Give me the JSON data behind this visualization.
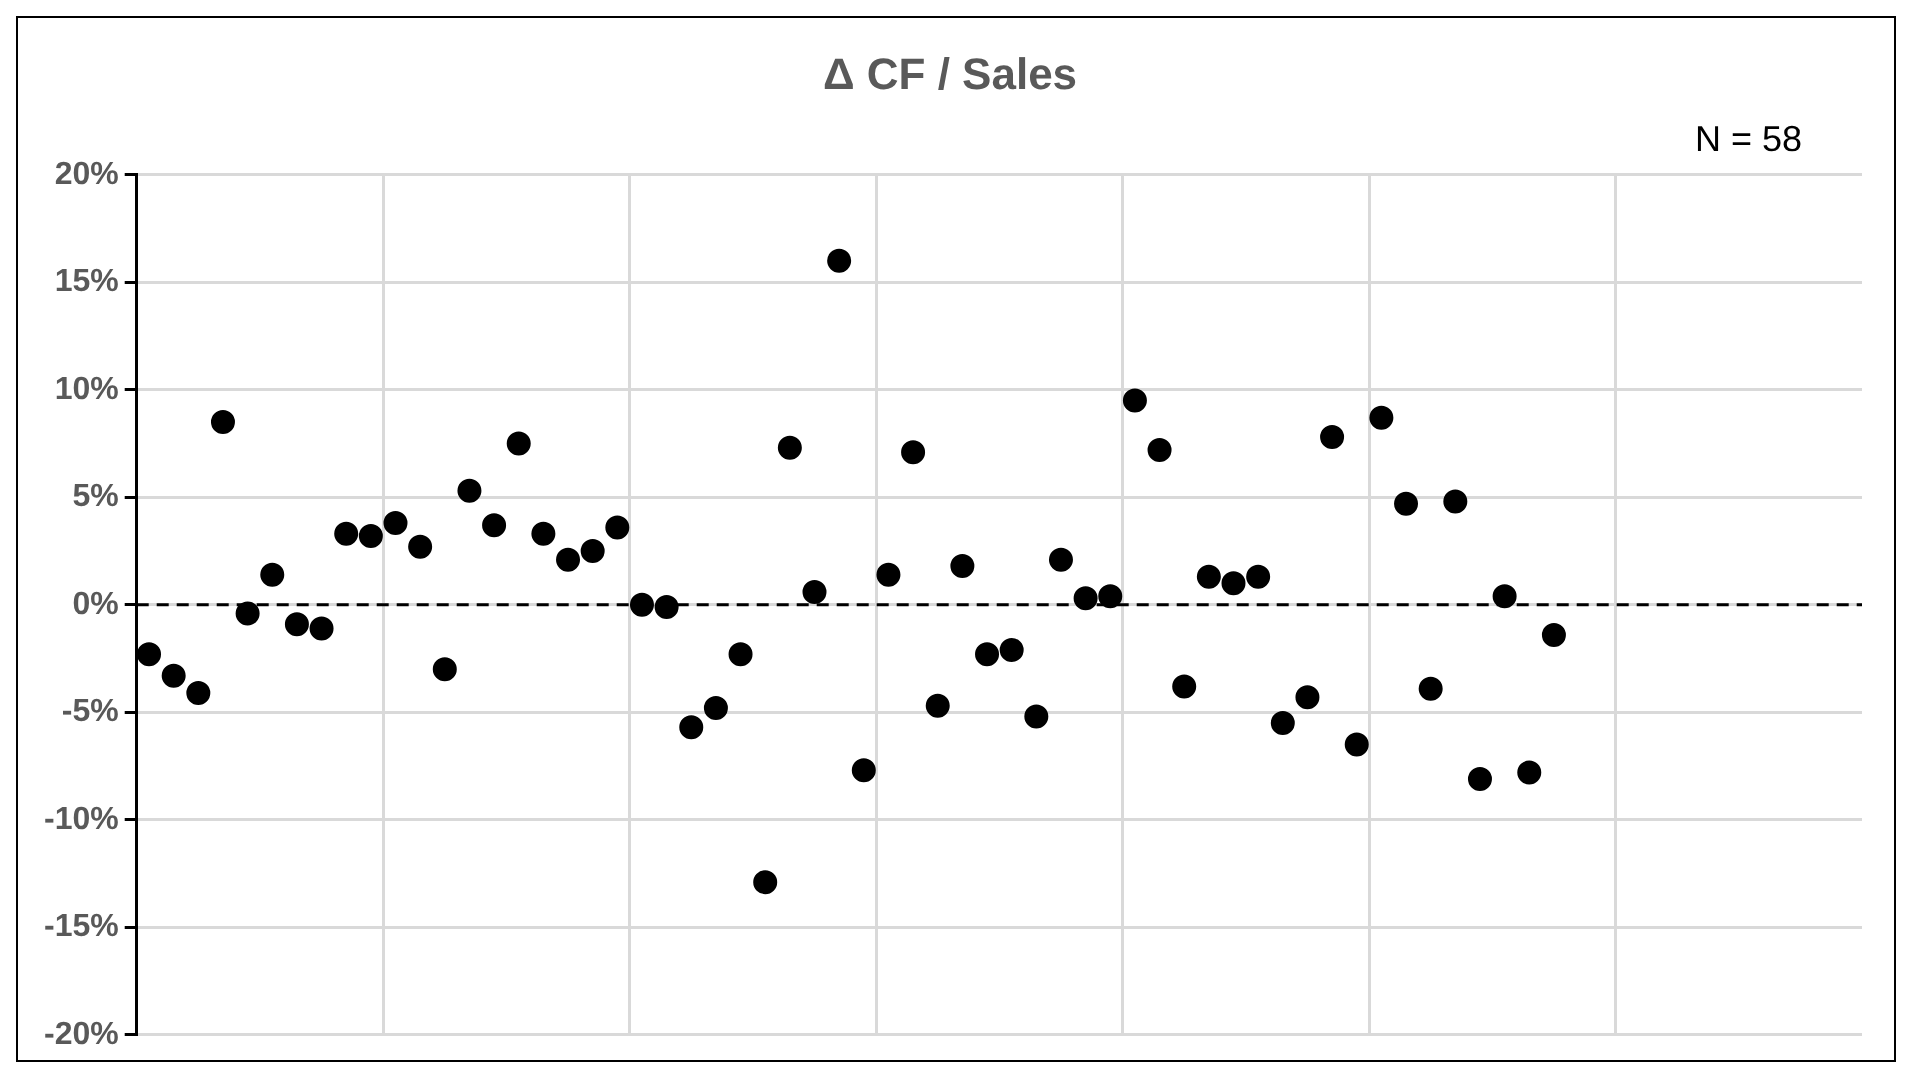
{
  "chart_data": {
    "type": "scatter",
    "title": "Δ CF / Sales",
    "annotations": [
      "N = 58"
    ],
    "categories": [
      null,
      null,
      null,
      null,
      null,
      null,
      null,
      null,
      null,
      null,
      null,
      null,
      null,
      null,
      null,
      null,
      null,
      null,
      null,
      null,
      null,
      null,
      null,
      null,
      null,
      null,
      null,
      null,
      null,
      null,
      null,
      null,
      null,
      null,
      null,
      null,
      null,
      null,
      null,
      null,
      null,
      null,
      null,
      null,
      null,
      null,
      null,
      null,
      null,
      null,
      null,
      null,
      null,
      null,
      null,
      null,
      null,
      null,
      null,
      null,
      null,
      null,
      null,
      null,
      null,
      null,
      null,
      null,
      null,
      null
    ],
    "series": [
      {
        "color": "#000000",
        "values": [
          -2.3,
          -3.3,
          -4.1,
          8.5,
          -0.4,
          1.4,
          -0.9,
          -1.1,
          3.3,
          3.2,
          3.8,
          2.7,
          -3.0,
          5.3,
          3.7,
          7.5,
          3.3,
          2.1,
          2.5,
          3.6,
          0.0,
          -0.1,
          -5.7,
          -4.8,
          -2.3,
          -12.9,
          7.3,
          0.6,
          16.0,
          -7.7,
          1.4,
          7.1,
          -4.7,
          1.8,
          -2.3,
          -2.1,
          -5.2,
          2.1,
          0.3,
          0.4,
          9.5,
          7.2,
          -3.8,
          1.3,
          1.0,
          1.3,
          -5.5,
          -4.3,
          7.8,
          -6.5,
          8.7,
          4.7,
          -3.9,
          4.8,
          -8.1,
          0.4,
          -7.8,
          -1.4,
          null,
          null,
          null,
          null,
          null,
          null,
          null,
          null,
          null,
          null,
          null,
          null
        ]
      }
    ],
    "ylim": [
      -20,
      20
    ],
    "yticks": [
      {
        "value": -20,
        "label": "-20%"
      },
      {
        "value": -15,
        "label": "-15%"
      },
      {
        "value": -10,
        "label": "-10%"
      },
      {
        "value": -5,
        "label": "-5%"
      },
      {
        "value": 0,
        "label": "0%"
      },
      {
        "value": 5,
        "label": "5%"
      },
      {
        "value": 10,
        "label": "10%"
      },
      {
        "value": 15,
        "label": "15%"
      },
      {
        "value": 20,
        "label": "20%"
      }
    ],
    "ref_lines": [
      {
        "axis": "y",
        "value": 0,
        "color": "#000000",
        "line_style": "dashed"
      }
    ],
    "grid": true,
    "marker": "circle",
    "legend": false
  }
}
